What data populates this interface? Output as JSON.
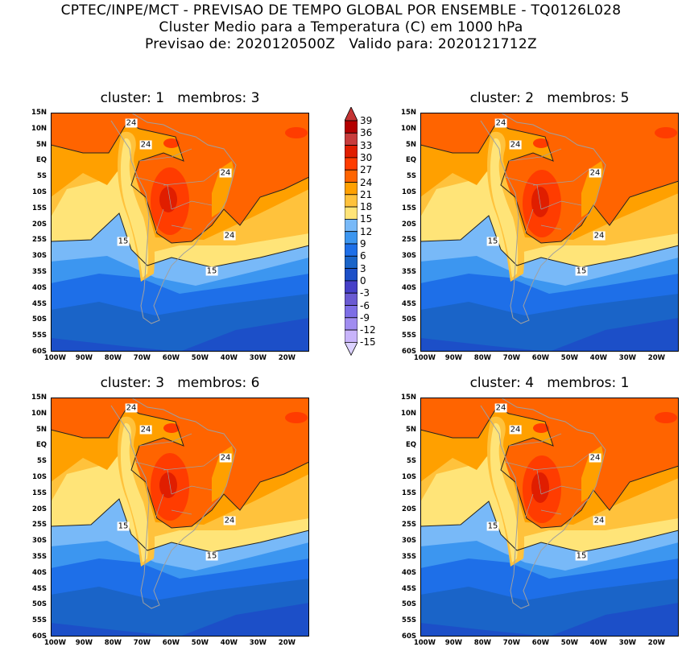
{
  "title": {
    "line1": "CPTEC/INPE/MCT - PREVISAO DE TEMPO GLOBAL POR ENSEMBLE - TQ0126L028",
    "line2": "Cluster Medio para a Temperatura (C) em 1000 hPa",
    "line3": "Previsao de: 2020120500Z   Valido para: 2020121712Z"
  },
  "panels": [
    {
      "title": "cluster: 1   membros: 3",
      "contour_labels": [
        "24",
        "24",
        "24",
        "24",
        "15",
        "15"
      ]
    },
    {
      "title": "cluster: 2   membros: 5",
      "contour_labels": [
        "24",
        "24",
        "24",
        "24",
        "15",
        "15"
      ]
    },
    {
      "title": "cluster: 3   membros: 6",
      "contour_labels": [
        "24",
        "24",
        "24",
        "24",
        "15",
        "15"
      ]
    },
    {
      "title": "cluster: 4   membros: 1",
      "contour_labels": [
        "24",
        "24",
        "24",
        "24",
        "15",
        "15"
      ]
    }
  ],
  "axes": {
    "lat_labels": [
      "15N",
      "10N",
      "5N",
      "EQ",
      "5S",
      "10S",
      "15S",
      "20S",
      "25S",
      "30S",
      "35S",
      "40S",
      "45S",
      "50S",
      "55S",
      "60S"
    ],
    "lon_labels": [
      "100W",
      "90W",
      "80W",
      "70W",
      "60W",
      "50W",
      "40W",
      "30W",
      "20W"
    ]
  },
  "colorbar": {
    "labels": [
      "39",
      "36",
      "33",
      "30",
      "27",
      "24",
      "21",
      "18",
      "15",
      "12",
      "9",
      "6",
      "3",
      "0",
      "-3",
      "-6",
      "-9",
      "-12",
      "-15"
    ],
    "colors": [
      "#c43434",
      "#b40000",
      "#c83c3c",
      "#e01e00",
      "#ff3c00",
      "#ff6400",
      "#ffa000",
      "#ffc23c",
      "#ffe478",
      "#78b9f8",
      "#3c96f0",
      "#1e6fe8",
      "#1a64c8",
      "#1c4fc8",
      "#4640c8",
      "#6a5ad2",
      "#7d6ee6",
      "#a08cf0",
      "#c8b4fa",
      "#dcd2ff"
    ]
  }
}
